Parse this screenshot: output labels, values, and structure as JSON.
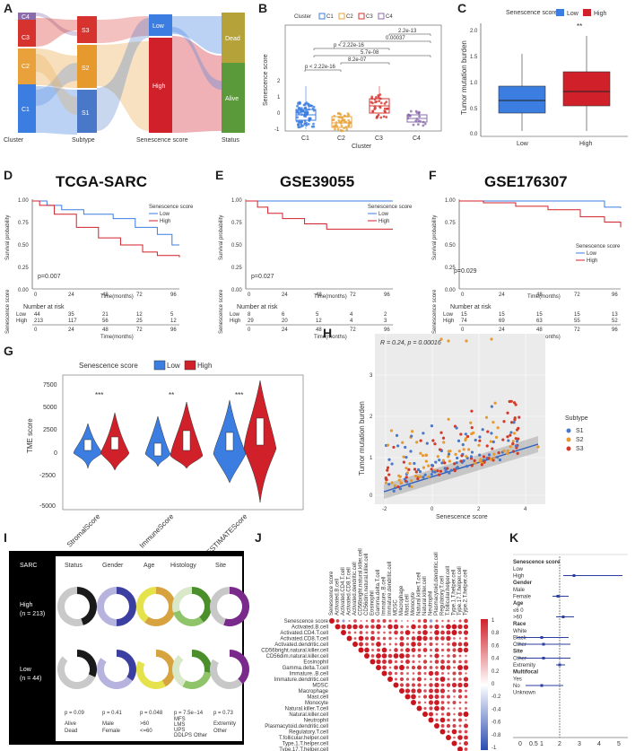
{
  "colors": {
    "c1": "#3b7de0",
    "c2": "#e9a23b",
    "c3": "#d6332e",
    "c4": "#8b6cab",
    "low": "#3b7de0",
    "high": "#d0202a",
    "dead": "#b5a33a",
    "alive": "#5a9a3a",
    "s1": "#4a78c8",
    "s2": "#e69a2e",
    "s3": "#d23a2a"
  },
  "panel_a": {
    "letter": "A",
    "axis_labels": [
      "Cluster",
      "Subtype",
      "Senescence score",
      "Status"
    ],
    "cluster_nodes": [
      "C4",
      "C3",
      "C2",
      "C1"
    ],
    "subtype_nodes": [
      "S3",
      "S2",
      "S1"
    ],
    "score_nodes": [
      "Low",
      "High"
    ],
    "status_nodes": [
      "Dead",
      "Alive"
    ]
  },
  "panel_b": {
    "letter": "B",
    "legend_title": "Cluster",
    "legend_items": [
      "C1",
      "C2",
      "C3",
      "C4"
    ],
    "ylabel": "Senescence score",
    "xlabel": "Cluster",
    "pvalues": [
      "2.2e-13",
      "0.00037",
      "p < 2.22e-16",
      "5.7e-08",
      "8.2e-07",
      "p < 2.22e-16"
    ],
    "y_ticks": [
      "2",
      "1",
      "0",
      "-1"
    ],
    "x_ticks": [
      "C1",
      "C2",
      "C3",
      "C4"
    ]
  },
  "panel_c": {
    "letter": "C",
    "legend_title": "Senescence score",
    "legend_items": [
      "Low",
      "High"
    ],
    "ylabel": "Tumor mutation burden",
    "sig": "**",
    "y_ticks": [
      "2.0",
      "1.5",
      "1.0",
      "0.5",
      "0.0"
    ],
    "x_ticks": [
      "Low",
      "High"
    ]
  },
  "km_panels": [
    {
      "letter": "D",
      "title": "TCGA-SARC",
      "pval": "p=0.007",
      "risk_low": [
        "44",
        "35",
        "21",
        "12",
        "5"
      ],
      "risk_high": [
        "213",
        "117",
        "56",
        "25",
        "12"
      ]
    },
    {
      "letter": "E",
      "title": "GSE39055",
      "pval": "p=0.027",
      "risk_low": [
        "8",
        "6",
        "5",
        "4",
        "2"
      ],
      "risk_high": [
        "29",
        "20",
        "12",
        "4",
        "3"
      ]
    },
    {
      "letter": "F",
      "title": "GSE176307",
      "pval": "p=0.029",
      "risk_low": [
        "15",
        "15",
        "15",
        "15",
        "13"
      ],
      "risk_high": [
        "74",
        "69",
        "63",
        "55",
        "52"
      ]
    }
  ],
  "km_common": {
    "ylabel": "Survival probability",
    "xlabel": "Time(months)",
    "risk_title": "Number at risk",
    "risk_ylabel": "Senescence score",
    "legend_title": "Senescence score",
    "legend_low": "Low",
    "legend_high": "High",
    "row_low": "Low",
    "row_high": "High",
    "x_ticks": [
      "0",
      "24",
      "48",
      "72",
      "96"
    ],
    "y_ticks": [
      "1.00",
      "0.75",
      "0.50",
      "0.25",
      "0.00"
    ]
  },
  "panel_g": {
    "letter": "G",
    "legend_title": "Senescence score",
    "legend_items": [
      "Low",
      "High"
    ],
    "ylabel": "TME score",
    "y_ticks": [
      "7500",
      "5000",
      "2500",
      "0",
      "-2500",
      "-5000"
    ],
    "groups": [
      "StromalScore",
      "ImmuneScore",
      "ESTIMATEScore"
    ],
    "sigs": [
      "***",
      "**",
      "***"
    ]
  },
  "panel_h": {
    "letter": "H",
    "annotation": "R = 0.24, p = 0.00016",
    "xlabel": "Senescence score",
    "ylabel": "Tumor mutation burden",
    "legend_title": "Subtype",
    "legend_items": [
      "S1",
      "S2",
      "S3"
    ],
    "x_ticks": [
      "-2",
      "0",
      "2",
      "4"
    ],
    "y_ticks": [
      "0",
      "1",
      "2",
      "3"
    ]
  },
  "panel_i": {
    "letter": "I",
    "corner": "SARC",
    "columns": [
      "Status",
      "Gender",
      "Age",
      "Histology",
      "Site"
    ],
    "rows": [
      "High\n(n = 213)",
      "Low\n(n = 44)"
    ],
    "row_high": "High",
    "row_high_n": "(n = 213)",
    "row_low": "Low",
    "row_low_n": "(n = 44)",
    "pvals": [
      "p = 0.09",
      "p = 0.41",
      "p = 0.048",
      "p = 7.5e−14",
      "p = 0.73"
    ],
    "legend_status": [
      "Alive",
      "Dead"
    ],
    "legend_gender": [
      "Male",
      "Female"
    ],
    "legend_age": [
      ">60",
      "<=60"
    ],
    "legend_hist": [
      "MFS",
      "LMS",
      "UPS",
      "DDLPS",
      "Other"
    ],
    "legend_site": [
      "Extremity",
      "Other"
    ]
  },
  "panel_j": {
    "letter": "J",
    "cells": [
      "Senescence score",
      "Activated.B.cell",
      "Activated.CD4.T.cell",
      "Activated.CD8.T.cell",
      "Activated.dendritic.cell",
      "CD56bright.natural.killer.cell",
      "CD56dim.natural.killer.cell",
      "Eosinophil",
      "Gamma.delta.T.cell",
      "Immature..B.cell",
      "Immature.dendritic.cell",
      "MDSC",
      "Macrophage",
      "Mast.cell",
      "Monocyte",
      "Natural.killer.T.cell",
      "Natural.killer.cell",
      "Neutrophil",
      "Plasmacytoid.dendritic.cell",
      "Regulatory.T.cell",
      "T.follicular.helper.cell",
      "Type.1.T.helper.cell",
      "Type.17.T.helper.cell",
      "Type.2.T.helper.cell"
    ],
    "scale": [
      "1",
      "0.8",
      "0.6",
      "0.4",
      "0.2",
      "0",
      "-0.2",
      "-0.4",
      "-0.6",
      "-0.8",
      "-1"
    ]
  },
  "panel_k": {
    "letter": "K",
    "labels": [
      "Senescence score",
      "Low",
      "High",
      "Gender",
      "Male",
      "Female",
      "Age",
      "≤6 0",
      ">60",
      "Race",
      "White",
      "Black",
      "Other",
      "Site",
      "Other",
      "Extremity",
      "Multifocal",
      "Yes",
      "No",
      "Unknown"
    ],
    "x_ticks": [
      "0",
      "0.5",
      "1",
      "2",
      "3",
      "4",
      "5"
    ]
  }
}
